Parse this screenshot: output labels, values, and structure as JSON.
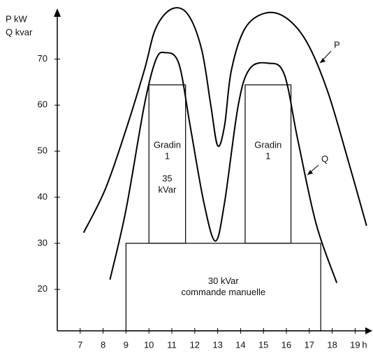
{
  "chart_data": {
    "type": "line",
    "y_label": [
      "P kW",
      "Q kvar"
    ],
    "x_label": "h",
    "xlim": [
      6,
      19.75
    ],
    "xticks": [
      7,
      8,
      9,
      10,
      11,
      12,
      13,
      14,
      15,
      16,
      17,
      18,
      19
    ],
    "ylim": [
      11,
      81
    ],
    "yticks": [
      20,
      30,
      40,
      50,
      60,
      70
    ],
    "series": [
      {
        "name": "P",
        "color": "#000000",
        "x": [
          7.15,
          8.1,
          9.0,
          9.8,
          10.3,
          11.0,
          11.7,
          12.3,
          12.7,
          13.0,
          13.3,
          13.6,
          14.2,
          15.1,
          16.0,
          16.9,
          17.8,
          18.7,
          19.5
        ],
        "values": [
          32.3,
          41.8,
          54.7,
          67.6,
          76.7,
          80.9,
          79.7,
          72.1,
          60,
          51.2,
          55.5,
          67.6,
          76.7,
          80,
          78.9,
          73.6,
          63,
          47.9,
          33.8
        ]
      },
      {
        "name": "Q",
        "color": "#000000",
        "x": [
          8.3,
          9.0,
          9.8,
          10.3,
          10.7,
          11.3,
          11.8,
          12.4,
          12.9,
          13.3,
          13.9,
          14.4,
          15.2,
          15.9,
          16.5,
          17.3,
          18.2
        ],
        "values": [
          22.1,
          37.3,
          60,
          69.8,
          71.4,
          69.1,
          55.5,
          38.8,
          30.5,
          38.8,
          60,
          67.9,
          69.1,
          66.8,
          52.4,
          34.2,
          21.4
        ]
      }
    ],
    "blocks": [
      {
        "start": 9,
        "end": 17.5,
        "level": 30,
        "label": [
          "30 kVar",
          "commande manuelle"
        ]
      },
      {
        "start": 10,
        "end": 11.6,
        "base": 30,
        "level": 64.4,
        "label": [
          "Gradin",
          "1",
          "",
          "35",
          "kVar"
        ]
      },
      {
        "start": 14.2,
        "end": 16.2,
        "base": 30,
        "level": 64.4,
        "label": [
          "Gradin",
          "1"
        ]
      }
    ]
  }
}
